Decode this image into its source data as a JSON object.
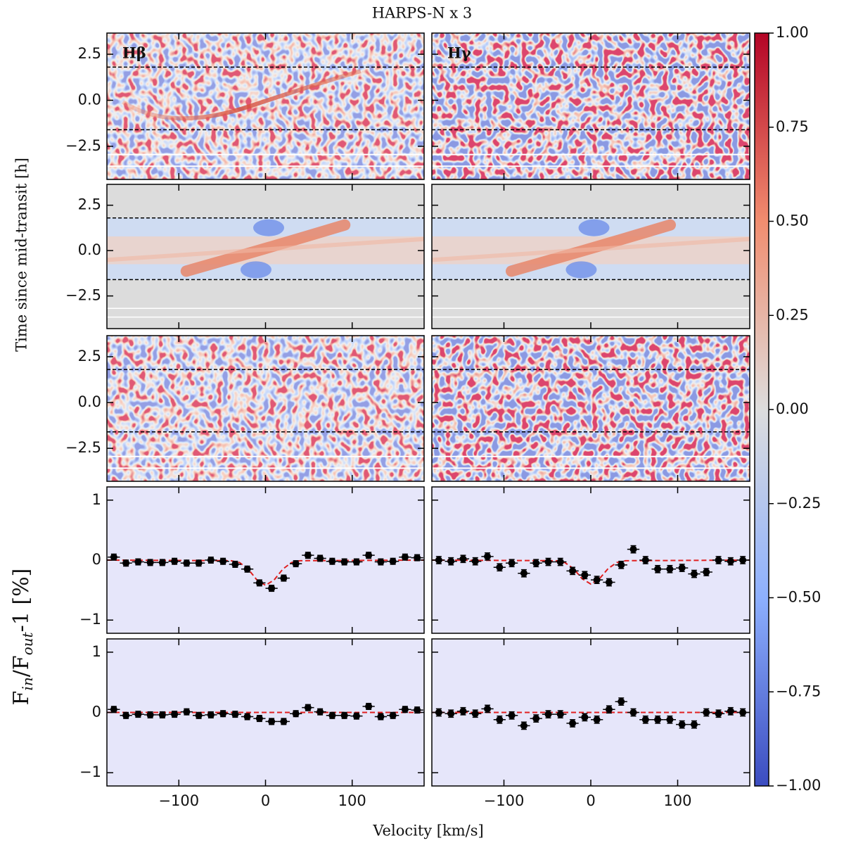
{
  "chart_data": {
    "type": "panel_grid",
    "title": "HARPS-N x 3",
    "ylabel_top": "Time since mid-transit [h]",
    "ylabel_bottom": [
      "F",
      "in",
      "/F",
      "out",
      "-1 [%]"
    ],
    "xlabel": "Velocity [km/s]",
    "panel_labels": [
      "Hβ",
      "Hγ"
    ],
    "xlim": [
      -183,
      183
    ],
    "xticks": [
      {
        "value": -100,
        "label": "−100"
      },
      0,
      100
    ],
    "heatmap_ylim": [
      -4.3,
      3.65
    ],
    "heatmap_yticks": [
      2.5,
      {
        "value": 0,
        "label": "0.0"
      },
      {
        "value": -2.5,
        "label": "−2.5"
      }
    ],
    "transit_lines": [
      1.8,
      -1.6
    ],
    "clim": [
      -1,
      1
    ],
    "cticks": [
      {
        "value": 1,
        "label": "1.00"
      },
      {
        "value": 0.75,
        "label": "0.75"
      },
      {
        "value": 0.5,
        "label": "0.50"
      },
      {
        "value": 0.25,
        "label": "0.25"
      },
      {
        "value": 0,
        "label": "0.00"
      },
      {
        "value": -0.25,
        "label": "−0.25"
      },
      {
        "value": -0.5,
        "label": "−0.50"
      },
      {
        "value": -0.75,
        "label": "−0.75"
      },
      {
        "value": -1,
        "label": "−1.00"
      }
    ],
    "profile_ylim": [
      -1.22,
      1.22
    ],
    "profile_yticks": [
      1,
      0,
      {
        "value": -1,
        "label": "−1"
      }
    ],
    "bin_x": [
      -175,
      -161,
      -147,
      -133,
      -119,
      -105,
      -91,
      -77,
      -63,
      -49,
      -35,
      -21,
      -7,
      7,
      21,
      35,
      49,
      63,
      77,
      91,
      105,
      119,
      133,
      147,
      161,
      175
    ],
    "bin_width": 14,
    "profiles": [
      {
        "values": [
          0.05,
          -0.05,
          -0.03,
          -0.04,
          -0.04,
          -0.02,
          -0.05,
          -0.05,
          0.0,
          -0.02,
          -0.07,
          -0.15,
          -0.38,
          -0.47,
          -0.3,
          -0.06,
          0.08,
          0.03,
          -0.02,
          -0.03,
          -0.03,
          0.08,
          -0.03,
          -0.02,
          0.05,
          0.04
        ],
        "error": 0.05,
        "model_x": [
          -183,
          -40,
          -30,
          -20,
          -10,
          0,
          10,
          20,
          30,
          40,
          183
        ],
        "model_values": [
          0,
          -0.01,
          -0.04,
          -0.15,
          -0.33,
          -0.42,
          -0.33,
          -0.15,
          -0.04,
          -0.01,
          0
        ]
      },
      {
        "values": [
          0.0,
          -0.02,
          0.02,
          -0.02,
          0.06,
          -0.12,
          -0.05,
          -0.22,
          -0.05,
          -0.03,
          -0.03,
          -0.18,
          -0.25,
          -0.33,
          -0.37,
          -0.08,
          0.18,
          0.0,
          -0.15,
          -0.15,
          -0.13,
          -0.23,
          -0.2,
          0.0,
          -0.02,
          0.0
        ],
        "error": 0.06,
        "model_x": [
          -183,
          -40,
          -30,
          -20,
          -10,
          0,
          10,
          20,
          30,
          40,
          183
        ],
        "model_values": [
          0,
          -0.01,
          -0.04,
          -0.14,
          -0.31,
          -0.4,
          -0.31,
          -0.14,
          -0.04,
          -0.01,
          0
        ]
      },
      {
        "values": [
          0.05,
          -0.05,
          -0.03,
          -0.04,
          -0.04,
          -0.03,
          0.01,
          -0.05,
          -0.04,
          -0.02,
          -0.03,
          -0.07,
          -0.1,
          -0.15,
          -0.15,
          -0.02,
          0.08,
          0.01,
          -0.05,
          -0.05,
          -0.06,
          0.1,
          -0.07,
          -0.05,
          0.05,
          0.04
        ],
        "error": 0.05,
        "model_x": [
          -183,
          183
        ],
        "model_values": [
          0,
          0
        ]
      },
      {
        "values": [
          0.0,
          -0.02,
          0.02,
          -0.02,
          0.06,
          -0.12,
          -0.05,
          -0.22,
          -0.1,
          -0.03,
          -0.03,
          -0.18,
          -0.08,
          -0.12,
          0.05,
          0.18,
          0.0,
          -0.12,
          -0.12,
          -0.12,
          -0.2,
          -0.2,
          0.0,
          -0.02,
          0.02,
          0.0
        ],
        "error": 0.06,
        "model_x": [
          -183,
          183
        ],
        "model_values": [
          0,
          0
        ]
      }
    ]
  }
}
